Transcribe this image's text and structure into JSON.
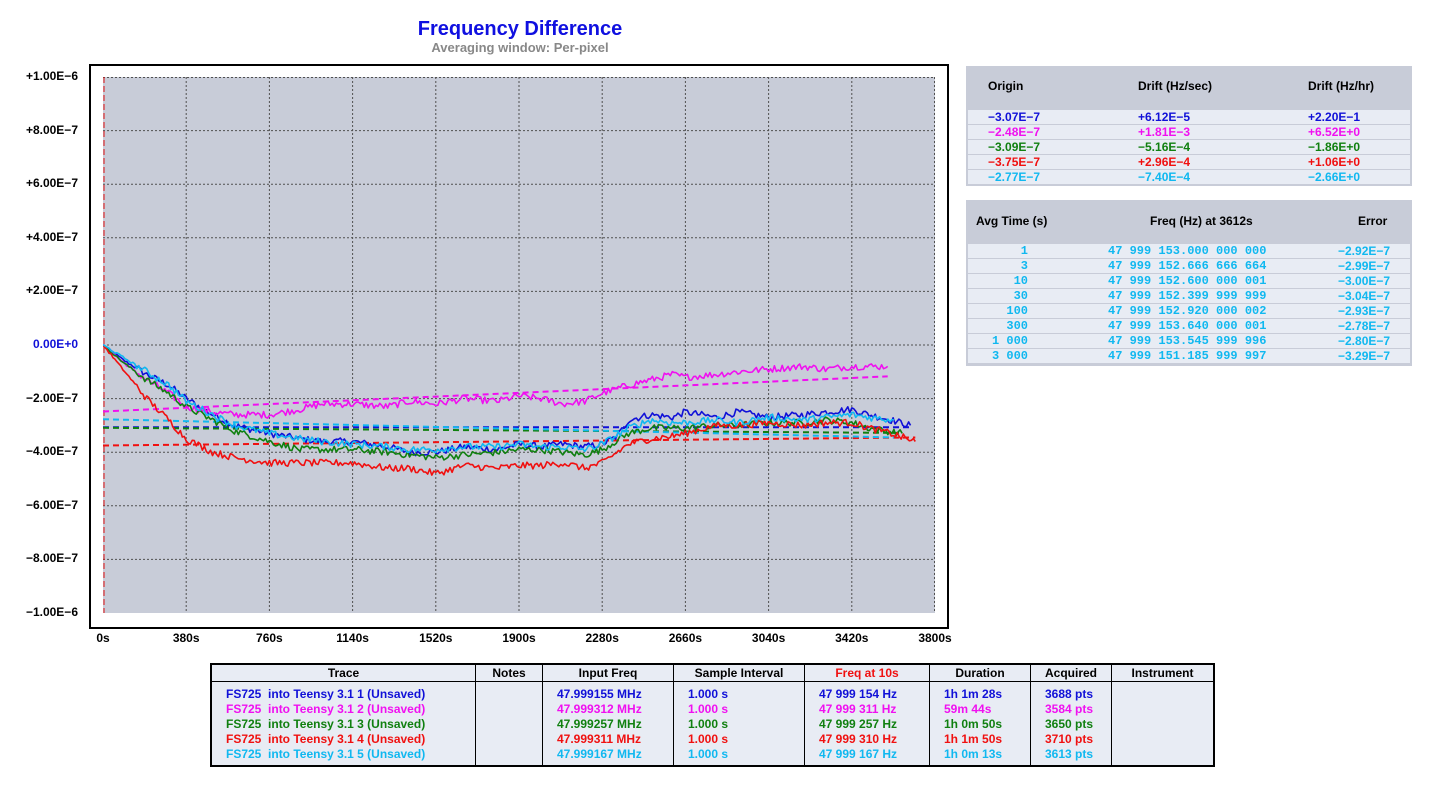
{
  "title": "Frequency Difference",
  "subtitle": "Averaging window: Per-pixel",
  "colors": {
    "blue": "#1010d8",
    "magenta": "#f010f0",
    "green": "#108010",
    "red": "#f01010",
    "cyan": "#10b8f0",
    "plot_bg": "#c8ccd8",
    "panel_bg": "#c8ccd8"
  },
  "chart_data": {
    "type": "line",
    "title": "Frequency Difference",
    "subtitle": "Averaging window: Per-pixel",
    "xlabel": "",
    "ylabel": "",
    "xlim": [
      0,
      3800
    ],
    "ylim": [
      -1e-06,
      1e-06
    ],
    "x_tick_labels": [
      "0s",
      "380s",
      "760s",
      "1140s",
      "1520s",
      "1900s",
      "2280s",
      "2660s",
      "3040s",
      "3420s",
      "3800s"
    ],
    "y_tick_labels": [
      "+1.00E−6",
      "+8.00E−7",
      "+6.00E−7",
      "+4.00E−7",
      "+2.00E−7",
      "0.00E+0",
      "−2.00E−7",
      "−4.00E−7",
      "−6.00E−7",
      "−8.00E−7",
      "−1.00E−6"
    ],
    "grid": true,
    "series": [
      {
        "name": "FS725  into Teensy 3.1 1 (Unsaved)",
        "color": "#1010d8",
        "x": [
          0,
          100,
          200,
          300,
          380,
          500,
          600,
          760,
          900,
          1000,
          1140,
          1300,
          1400,
          1520,
          1650,
          1800,
          1900,
          2000,
          2100,
          2200,
          2280,
          2350,
          2400,
          2500,
          2600,
          2660,
          2800,
          2900,
          3040,
          3200,
          3300,
          3420,
          3500,
          3600,
          3688
        ],
        "y": [
          0,
          -6e-08,
          -1.1e-07,
          -1.5e-07,
          -2e-07,
          -2.6e-07,
          -3e-07,
          -3.3e-07,
          -3.5e-07,
          -3.6e-07,
          -3.6e-07,
          -3.8e-07,
          -4e-07,
          -4e-07,
          -3.8e-07,
          -3.9e-07,
          -3.7e-07,
          -3.8e-07,
          -3.7e-07,
          -3.8e-07,
          -3.7e-07,
          -3.4e-07,
          -2.8e-07,
          -2.6e-07,
          -2.7e-07,
          -2.5e-07,
          -2.7e-07,
          -2.5e-07,
          -2.7e-07,
          -2.6e-07,
          -2.5e-07,
          -2.4e-07,
          -2.6e-07,
          -2.8e-07,
          -3e-07
        ]
      },
      {
        "name": "FS725  into Teensy 3.1 2 (Unsaved)",
        "color": "#f010f0",
        "x": [
          0,
          100,
          200,
          300,
          380,
          500,
          600,
          760,
          900,
          1000,
          1140,
          1300,
          1400,
          1520,
          1650,
          1800,
          1900,
          2000,
          2100,
          2200,
          2280,
          2400,
          2500,
          2600,
          2660,
          2800,
          2900,
          3040,
          3200,
          3300,
          3420,
          3500,
          3584
        ],
        "y": [
          0,
          -7e-08,
          -1.3e-07,
          -1.8e-07,
          -2.3e-07,
          -2.5e-07,
          -2.6e-07,
          -2.6e-07,
          -2.4e-07,
          -2.2e-07,
          -2.2e-07,
          -2.3e-07,
          -2.1e-07,
          -2.2e-07,
          -2e-07,
          -2.1e-07,
          -1.9e-07,
          -2e-07,
          -2.2e-07,
          -2.1e-07,
          -1.8e-07,
          -1.5e-07,
          -1.3e-07,
          -1.1e-07,
          -1.2e-07,
          -1.1e-07,
          -1e-07,
          -9e-08,
          -8e-08,
          -9e-08,
          -8e-08,
          -8e-08,
          -8e-08
        ]
      },
      {
        "name": "FS725  into Teensy 3.1 3 (Unsaved)",
        "color": "#108010",
        "x": [
          0,
          100,
          200,
          300,
          380,
          500,
          600,
          760,
          900,
          1000,
          1140,
          1300,
          1400,
          1520,
          1650,
          1800,
          1900,
          2000,
          2100,
          2200,
          2280,
          2400,
          2500,
          2600,
          2660,
          2800,
          2900,
          3040,
          3200,
          3300,
          3420,
          3500,
          3650
        ],
        "y": [
          0,
          -7e-08,
          -1.3e-07,
          -1.8e-07,
          -2.3e-07,
          -2.8e-07,
          -3.2e-07,
          -3.6e-07,
          -3.9e-07,
          -3.9e-07,
          -3.9e-07,
          -4e-07,
          -4.1e-07,
          -4.2e-07,
          -4.1e-07,
          -4e-07,
          -3.9e-07,
          -3.9e-07,
          -4e-07,
          -4.1e-07,
          -3.9e-07,
          -3.3e-07,
          -3.1e-07,
          -3.1e-07,
          -3.1e-07,
          -3e-07,
          -3e-07,
          -2.9e-07,
          -2.9e-07,
          -2.8e-07,
          -2.9e-07,
          -3.1e-07,
          -3.3e-07
        ]
      },
      {
        "name": "FS725  into Teensy 3.1 4 (Unsaved)",
        "color": "#f01010",
        "x": [
          0,
          100,
          200,
          300,
          380,
          500,
          600,
          760,
          900,
          1000,
          1140,
          1300,
          1400,
          1520,
          1650,
          1800,
          1900,
          2000,
          2100,
          2200,
          2280,
          2400,
          2500,
          2600,
          2660,
          2800,
          2900,
          3040,
          3200,
          3300,
          3420,
          3500,
          3600,
          3710
        ],
        "y": [
          0,
          -1e-07,
          -2e-07,
          -2.8e-07,
          -3.5e-07,
          -4e-07,
          -4.2e-07,
          -4.4e-07,
          -4.4e-07,
          -4.4e-07,
          -4.4e-07,
          -4.6e-07,
          -4.6e-07,
          -4.8e-07,
          -4.5e-07,
          -4.6e-07,
          -4.5e-07,
          -4.5e-07,
          -4.4e-07,
          -4.6e-07,
          -4.4e-07,
          -3.7e-07,
          -3.5e-07,
          -3.4e-07,
          -3.3e-07,
          -3e-07,
          -3e-07,
          -2.9e-07,
          -3e-07,
          -2.9e-07,
          -2.9e-07,
          -3.1e-07,
          -3.3e-07,
          -3.6e-07
        ]
      },
      {
        "name": "FS725  into Teensy 3.1 5 (Unsaved)",
        "color": "#10b8f0",
        "x": [
          0,
          100,
          200,
          300,
          380,
          500,
          600,
          760,
          900,
          1000,
          1140,
          1300,
          1400,
          1520,
          1650,
          1800,
          1900,
          2000,
          2100,
          2200,
          2280,
          2400,
          2500,
          2600,
          2660,
          2800,
          2900,
          3040,
          3200,
          3300,
          3420,
          3500,
          3613
        ],
        "y": [
          0,
          -5e-08,
          -1e-07,
          -1.5e-07,
          -2.1e-07,
          -2.6e-07,
          -3e-07,
          -3.3e-07,
          -3.5e-07,
          -3.6e-07,
          -3.7e-07,
          -3.8e-07,
          -3.9e-07,
          -3.9e-07,
          -3.8e-07,
          -3.8e-07,
          -3.7e-07,
          -3.8e-07,
          -3.8e-07,
          -3.9e-07,
          -3.7e-07,
          -3.1e-07,
          -2.8e-07,
          -2.9e-07,
          -2.9e-07,
          -2.8e-07,
          -2.9e-07,
          -2.7e-07,
          -2.8e-07,
          -2.7e-07,
          -2.6e-07,
          -2.7e-07,
          -2.8e-07
        ]
      }
    ],
    "drift_lines": [
      {
        "color": "#1010d8",
        "x": [
          0,
          3688
        ],
        "y": [
          -3.07e-07,
          -3.07e-07
        ]
      },
      {
        "color": "#f010f0",
        "x": [
          0,
          3584
        ],
        "y": [
          -2.48e-07,
          -1.17e-07
        ]
      },
      {
        "color": "#108010",
        "x": [
          0,
          3650
        ],
        "y": [
          -3.09e-07,
          -3.28e-07
        ]
      },
      {
        "color": "#f01010",
        "x": [
          0,
          3710
        ],
        "y": [
          -3.75e-07,
          -3.45e-07
        ]
      },
      {
        "color": "#10b8f0",
        "x": [
          0,
          3613
        ],
        "y": [
          -2.77e-07,
          -3.45e-07
        ]
      }
    ]
  },
  "drift_table": {
    "headers": [
      "Origin",
      "Drift (Hz/sec)",
      "Drift (Hz/hr)"
    ],
    "rows": [
      {
        "origin": "−3.07E−7",
        "hz_sec": "+6.12E−5",
        "hz_hr": "+2.20E−1",
        "color": "#1010d8"
      },
      {
        "origin": "−2.48E−7",
        "hz_sec": "+1.81E−3",
        "hz_hr": "+6.52E+0",
        "color": "#f010f0"
      },
      {
        "origin": "−3.09E−7",
        "hz_sec": "−5.16E−4",
        "hz_hr": "−1.86E+0",
        "color": "#108010"
      },
      {
        "origin": "−3.75E−7",
        "hz_sec": "+2.96E−4",
        "hz_hr": "+1.06E+0",
        "color": "#f01010"
      },
      {
        "origin": "−2.77E−7",
        "hz_sec": "−7.40E−4",
        "hz_hr": "−2.66E+0",
        "color": "#10b8f0"
      }
    ]
  },
  "avg_table": {
    "headers": [
      "Avg Time (s)",
      "Freq (Hz) at 3612s",
      "Error"
    ],
    "color": "#10b8f0",
    "rows": [
      {
        "avg": "1",
        "freq": "47 999 153.000 000 000",
        "error": "−2.92E−7"
      },
      {
        "avg": "3",
        "freq": "47 999 152.666 666 664",
        "error": "−2.99E−7"
      },
      {
        "avg": "10",
        "freq": "47 999 152.600 000 001",
        "error": "−3.00E−7"
      },
      {
        "avg": "30",
        "freq": "47 999 152.399 999 999",
        "error": "−3.04E−7"
      },
      {
        "avg": "100",
        "freq": "47 999 152.920 000 002",
        "error": "−2.93E−7"
      },
      {
        "avg": "300",
        "freq": "47 999 153.640 000 001",
        "error": "−2.78E−7"
      },
      {
        "avg": "1 000",
        "freq": "47 999 153.545 999 996",
        "error": "−2.80E−7"
      },
      {
        "avg": "3 000",
        "freq": "47 999 151.185 999 997",
        "error": "−3.29E−7"
      }
    ]
  },
  "trace_table": {
    "headers": [
      "Trace",
      "Notes",
      "Input Freq",
      "Sample Interval",
      "Freq at 10s",
      "Duration",
      "Acquired",
      "Instrument"
    ],
    "freq_header_color": "#f01010",
    "rows": [
      {
        "trace": "FS725  into Teensy 3.1 1 (Unsaved)",
        "notes": "",
        "input": "47.999155 MHz",
        "interval": "1.000 s",
        "freq10": "47 999 154 Hz",
        "duration": "1h 1m 28s",
        "acquired": "3688 pts",
        "instrument": "",
        "color": "#1010d8"
      },
      {
        "trace": "FS725  into Teensy 3.1 2 (Unsaved)",
        "notes": "",
        "input": "47.999312 MHz",
        "interval": "1.000 s",
        "freq10": "47 999 311 Hz",
        "duration": "59m 44s",
        "acquired": "3584 pts",
        "instrument": "",
        "color": "#f010f0"
      },
      {
        "trace": "FS725  into Teensy 3.1 3 (Unsaved)",
        "notes": "",
        "input": "47.999257 MHz",
        "interval": "1.000 s",
        "freq10": "47 999 257 Hz",
        "duration": "1h 0m 50s",
        "acquired": "3650 pts",
        "instrument": "",
        "color": "#108010"
      },
      {
        "trace": "FS725  into Teensy 3.1 4 (Unsaved)",
        "notes": "",
        "input": "47.999311 MHz",
        "interval": "1.000 s",
        "freq10": "47 999 310 Hz",
        "duration": "1h 1m 50s",
        "acquired": "3710 pts",
        "instrument": "",
        "color": "#f01010"
      },
      {
        "trace": "FS725  into Teensy 3.1 5 (Unsaved)",
        "notes": "",
        "input": "47.999167 MHz",
        "interval": "1.000 s",
        "freq10": "47 999 167 Hz",
        "duration": "1h 0m 13s",
        "acquired": "3613 pts",
        "instrument": "",
        "color": "#10b8f0"
      }
    ]
  }
}
